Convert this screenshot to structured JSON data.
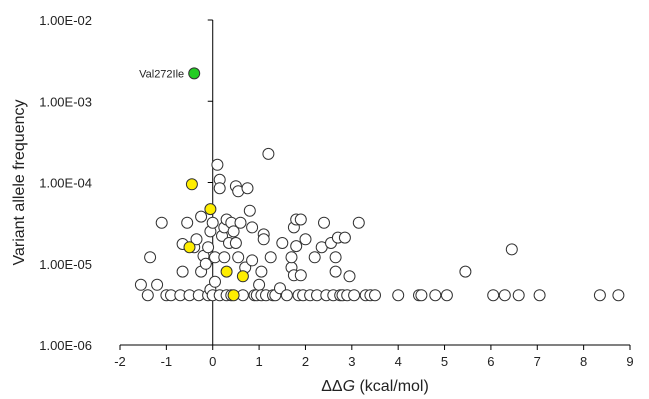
{
  "chart_data": {
    "type": "scatter",
    "xlabel_prefix": "ΔΔ",
    "xlabel_var": "G",
    "xlabel_unit": " (kcal/mol)",
    "ylabel": "Variant allele frequency",
    "xlim": [
      -2,
      9
    ],
    "x_ticks": [
      -2,
      -1,
      0,
      1,
      2,
      3,
      4,
      5,
      6,
      7,
      8,
      9
    ],
    "ylim": [
      1e-06,
      0.01
    ],
    "y_scale": "log",
    "y_ticks": [
      1e-06,
      1e-05,
      0.0001,
      0.001,
      0.01
    ],
    "y_tick_labels": [
      "1.00E-06",
      "1.00E-05",
      "1.00E-04",
      "1.00E-03",
      "1.00E-02"
    ],
    "grid": false,
    "annotation": {
      "label": "Val272Ile",
      "x": -0.4,
      "y": 0.0022
    },
    "colors": {
      "white": "#ffffff",
      "yellow": "#ffee00",
      "green": "#22cc22",
      "stroke": "#333333"
    },
    "series": [
      {
        "marker": "white",
        "points": [
          [
            -1.55,
            5.5e-06
          ],
          [
            -1.4,
            4.1e-06
          ],
          [
            -1.35,
            1.2e-05
          ],
          [
            -1.2,
            5.5e-06
          ],
          [
            -1.1,
            3.2e-05
          ],
          [
            -1.0,
            4.1e-06
          ],
          [
            -0.9,
            4.1e-06
          ],
          [
            -0.7,
            4.1e-06
          ],
          [
            -0.65,
            1.75e-05
          ],
          [
            -0.65,
            8e-06
          ],
          [
            -0.55,
            3.2e-05
          ],
          [
            -0.5,
            4.1e-06
          ],
          [
            -0.4,
            1.6e-05
          ],
          [
            -0.35,
            2e-05
          ],
          [
            -0.3,
            4.1e-06
          ],
          [
            -0.25,
            3.8e-05
          ],
          [
            -0.25,
            8e-06
          ],
          [
            -0.2,
            1.25e-05
          ],
          [
            -0.15,
            1e-05
          ],
          [
            -0.1,
            1.6e-05
          ],
          [
            -0.1,
            4.1e-06
          ],
          [
            -0.05,
            2.5e-05
          ],
          [
            -0.05,
            4.8e-06
          ],
          [
            0.0,
            3.2e-05
          ],
          [
            0.0,
            4.1e-06
          ],
          [
            0.05,
            1.2e-05
          ],
          [
            0.05,
            6e-06
          ],
          [
            0.1,
            0.000165
          ],
          [
            0.15,
            0.000108
          ],
          [
            0.15,
            8.5e-05
          ],
          [
            0.15,
            4.1e-06
          ],
          [
            0.2,
            2.2e-05
          ],
          [
            0.25,
            2.8e-05
          ],
          [
            0.25,
            1.2e-05
          ],
          [
            0.3,
            3.5e-05
          ],
          [
            0.3,
            4.1e-06
          ],
          [
            0.35,
            1.8e-05
          ],
          [
            0.4,
            3.2e-05
          ],
          [
            0.4,
            4.1e-06
          ],
          [
            0.45,
            2.5e-05
          ],
          [
            0.5,
            1.8e-05
          ],
          [
            0.5,
            9e-05
          ],
          [
            0.55,
            7.8e-05
          ],
          [
            0.55,
            1.2e-05
          ],
          [
            0.6,
            3.2e-05
          ],
          [
            0.65,
            4.1e-06
          ],
          [
            0.7,
            9e-06
          ],
          [
            0.75,
            8.5e-05
          ],
          [
            0.8,
            4.5e-05
          ],
          [
            0.85,
            2.8e-05
          ],
          [
            0.85,
            1.1e-05
          ],
          [
            0.9,
            4.1e-06
          ],
          [
            0.95,
            4.1e-06
          ],
          [
            1.0,
            5.5e-06
          ],
          [
            1.05,
            8e-06
          ],
          [
            1.05,
            4.1e-06
          ],
          [
            1.1,
            2.3e-05
          ],
          [
            1.1,
            2e-05
          ],
          [
            1.15,
            4.1e-06
          ],
          [
            1.2,
            0.000225
          ],
          [
            1.25,
            1.2e-05
          ],
          [
            1.3,
            4.1e-06
          ],
          [
            1.35,
            4.1e-06
          ],
          [
            1.45,
            5e-06
          ],
          [
            1.5,
            1.8e-05
          ],
          [
            1.6,
            4.1e-06
          ],
          [
            1.7,
            9e-06
          ],
          [
            1.7,
            1.2e-05
          ],
          [
            1.75,
            2.8e-05
          ],
          [
            1.75,
            7.2e-06
          ],
          [
            1.8,
            3.5e-05
          ],
          [
            1.8,
            1.65e-05
          ],
          [
            1.85,
            4.1e-06
          ],
          [
            1.9,
            3.5e-05
          ],
          [
            1.9,
            7.2e-06
          ],
          [
            1.95,
            4.1e-06
          ],
          [
            2.0,
            2e-05
          ],
          [
            2.1,
            4.1e-06
          ],
          [
            2.2,
            1.2e-05
          ],
          [
            2.25,
            4.1e-06
          ],
          [
            2.35,
            1.6e-05
          ],
          [
            2.4,
            3.2e-05
          ],
          [
            2.45,
            4.1e-06
          ],
          [
            2.55,
            1.8e-05
          ],
          [
            2.6,
            4.1e-06
          ],
          [
            2.65,
            8e-06
          ],
          [
            2.65,
            1.2e-05
          ],
          [
            2.7,
            2.1e-05
          ],
          [
            2.75,
            4.1e-06
          ],
          [
            2.8,
            4.1e-06
          ],
          [
            2.85,
            2.1e-05
          ],
          [
            2.9,
            4.1e-06
          ],
          [
            2.95,
            7e-06
          ],
          [
            3.05,
            4.1e-06
          ],
          [
            3.15,
            3.2e-05
          ],
          [
            3.3,
            4.1e-06
          ],
          [
            3.4,
            4.1e-06
          ],
          [
            3.5,
            4.1e-06
          ],
          [
            4.0,
            4.1e-06
          ],
          [
            4.45,
            4.1e-06
          ],
          [
            4.5,
            4.1e-06
          ],
          [
            4.8,
            4.1e-06
          ],
          [
            5.05,
            4.1e-06
          ],
          [
            5.45,
            8e-06
          ],
          [
            6.05,
            4.1e-06
          ],
          [
            6.3,
            4.1e-06
          ],
          [
            6.45,
            1.5e-05
          ],
          [
            6.6,
            4.1e-06
          ],
          [
            7.05,
            4.1e-06
          ],
          [
            8.35,
            4.1e-06
          ],
          [
            8.75,
            4.1e-06
          ]
        ]
      },
      {
        "marker": "yellow",
        "points": [
          [
            -0.45,
            9.5e-05
          ],
          [
            -0.05,
            4.7e-05
          ],
          [
            -0.5,
            1.6e-05
          ],
          [
            0.3,
            8e-06
          ],
          [
            0.65,
            7e-06
          ],
          [
            0.45,
            4.1e-06
          ]
        ]
      },
      {
        "marker": "green",
        "points": [
          [
            -0.4,
            0.0022
          ]
        ]
      }
    ]
  }
}
